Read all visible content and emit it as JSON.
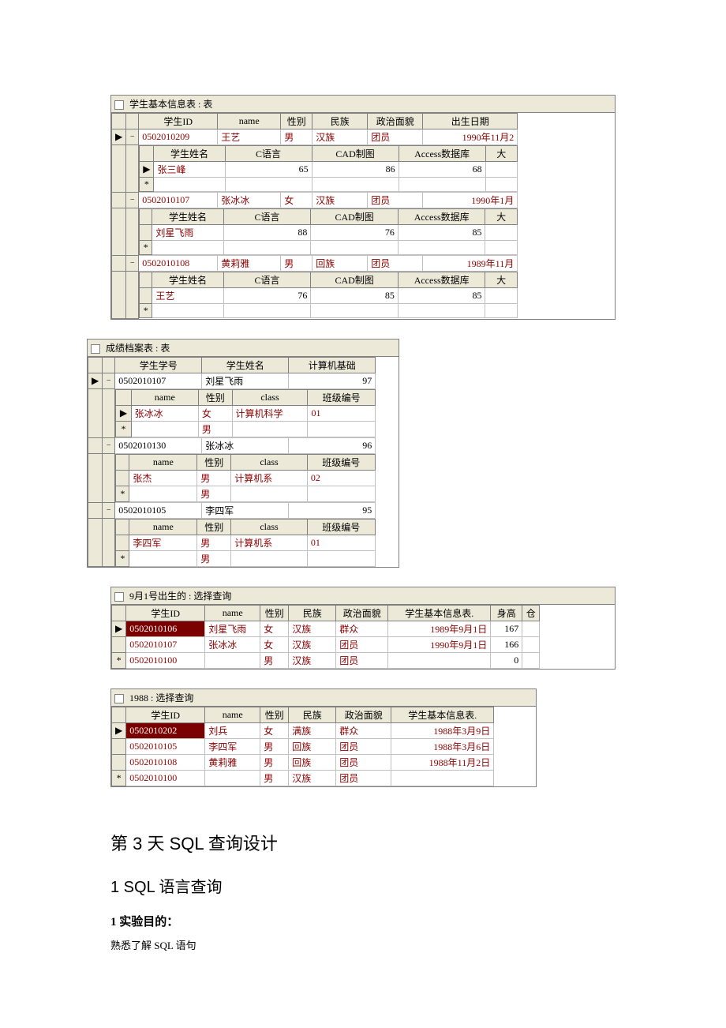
{
  "t1": {
    "title": "学生基本信息表 : 表",
    "cols": [
      "学生ID",
      "name",
      "性别",
      "民族",
      "政治面貌",
      "出生日期"
    ],
    "subcols": [
      "学生姓名",
      "C语言",
      "CAD制图",
      "Access数据库",
      "大"
    ],
    "rows": [
      {
        "id": "0502010209",
        "name": "王艺",
        "sex": "男",
        "nation": "汉族",
        "pol": "团员",
        "birth": "1990年11月2",
        "sub": [
          {
            "name": "张三峰",
            "c": "65",
            "cad": "86",
            "acc": "68"
          }
        ]
      },
      {
        "id": "0502010107",
        "name": "张冰冰",
        "sex": "女",
        "nation": "汉族",
        "pol": "团员",
        "birth": "1990年1月",
        "sub": [
          {
            "name": "刘星飞雨",
            "c": "88",
            "cad": "76",
            "acc": "85"
          }
        ]
      },
      {
        "id": "0502010108",
        "name": "黄莉雅",
        "sex": "男",
        "nation": "回族",
        "pol": "团员",
        "birth": "1989年11月",
        "sub": [
          {
            "name": "王艺",
            "c": "76",
            "cad": "85",
            "acc": "85"
          }
        ]
      }
    ]
  },
  "t2": {
    "title": "成绩档案表 : 表",
    "cols": [
      "学生学号",
      "学生姓名",
      "计算机基础"
    ],
    "subcols": [
      "name",
      "性别",
      "class",
      "班级编号"
    ],
    "rows": [
      {
        "id": "0502010107",
        "name": "刘星飞雨",
        "score": "97",
        "sub": [
          {
            "name": "张冰冰",
            "sex": "女",
            "class": "计算机科学",
            "bno": "01"
          },
          {
            "name": "",
            "sex": "男",
            "class": "",
            "bno": ""
          }
        ]
      },
      {
        "id": "0502010130",
        "name": "张冰冰",
        "score": "96",
        "sub": [
          {
            "name": "张杰",
            "sex": "男",
            "class": "计算机系",
            "bno": "02"
          },
          {
            "name": "",
            "sex": "男",
            "class": "",
            "bno": ""
          }
        ]
      },
      {
        "id": "0502010105",
        "name": "李四军",
        "score": "95",
        "sub": [
          {
            "name": "李四军",
            "sex": "男",
            "class": "计算机系",
            "bno": "01"
          },
          {
            "name": "",
            "sex": "男",
            "class": "",
            "bno": ""
          }
        ]
      }
    ]
  },
  "t3": {
    "title": "9月1号出生的 : 选择查询",
    "cols": [
      "学生ID",
      "name",
      "性别",
      "民族",
      "政治面貌",
      "学生基本信息表.",
      "身高",
      "仓"
    ],
    "rows": [
      {
        "id": "0502010106",
        "name": "刘星飞雨",
        "sex": "女",
        "nation": "汉族",
        "pol": "群众",
        "info": "1989年9月1日",
        "height": "167",
        "h": true
      },
      {
        "id": "0502010107",
        "name": "张冰冰",
        "sex": "女",
        "nation": "汉族",
        "pol": "团员",
        "info": "1990年9月1日",
        "height": "166"
      },
      {
        "id": "0502010100",
        "name": "",
        "sex": "男",
        "nation": "汉族",
        "pol": "团员",
        "info": "",
        "height": "0",
        "star": true
      }
    ]
  },
  "t4": {
    "title": "1988 : 选择查询",
    "cols": [
      "学生ID",
      "name",
      "性别",
      "民族",
      "政治面貌",
      "学生基本信息表."
    ],
    "rows": [
      {
        "id": "0502010202",
        "name": "刘兵",
        "sex": "女",
        "nation": "满族",
        "pol": "群众",
        "info": "1988年3月9日",
        "h": true
      },
      {
        "id": "0502010105",
        "name": "李四军",
        "sex": "男",
        "nation": "回族",
        "pol": "团员",
        "info": "1988年3月6日"
      },
      {
        "id": "0502010108",
        "name": "黄莉雅",
        "sex": "男",
        "nation": "回族",
        "pol": "团员",
        "info": "1988年11月2日"
      },
      {
        "id": "0502010100",
        "name": "",
        "sex": "男",
        "nation": "汉族",
        "pol": "团员",
        "info": "",
        "star": true
      }
    ]
  },
  "text": {
    "h1": "第 3 天  SQL 查询设计",
    "h2": "1 SQL 语言查询",
    "h3": "1  实验目的：",
    "p": "熟悉了解 SQL 语句"
  }
}
